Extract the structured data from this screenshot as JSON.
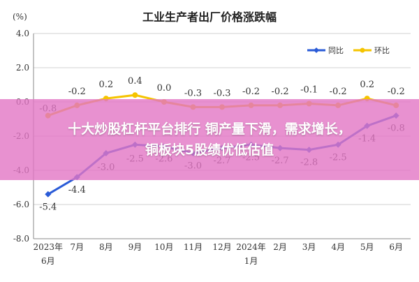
{
  "chart_data": {
    "type": "line",
    "title": "工业生产者出厂价格涨跌幅",
    "y_unit": "(%)",
    "ylim": [
      -8.0,
      4.0
    ],
    "yticks": [
      "4.0",
      "2.0",
      "0.0",
      "-2.0",
      "-4.0",
      "-6.0",
      "-8.0"
    ],
    "grid": true,
    "legend_position": "top-right",
    "categories": [
      "2023年 6月",
      "7月",
      "8月",
      "9月",
      "10月",
      "11月",
      "12月",
      "2024年 1月",
      "2月",
      "3月",
      "4月",
      "5月",
      "6月"
    ],
    "category_labels": [
      [
        "2023年",
        "6月"
      ],
      [
        "7月"
      ],
      [
        "8月"
      ],
      [
        "9月"
      ],
      [
        "10月"
      ],
      [
        "11月"
      ],
      [
        "12月"
      ],
      [
        "2024年",
        "1月"
      ],
      [
        "2月"
      ],
      [
        "3月"
      ],
      [
        "4月"
      ],
      [
        "5月"
      ],
      [
        "6月"
      ]
    ],
    "series": [
      {
        "name": "同比",
        "color": "#2a5bd7",
        "values": [
          -5.4,
          -4.4,
          -3.0,
          -2.5,
          -2.6,
          -3.0,
          -2.7,
          -2.5,
          -2.7,
          -2.8,
          -2.5,
          -1.4,
          -0.8
        ],
        "labels": [
          "-5.4",
          "-4.4",
          "-3.0",
          "-2.5",
          "-2.6",
          "-3.0",
          "-2.7",
          "-2.5",
          "-2.7",
          "-2.8",
          "-2.5",
          "-1.4",
          "-0.8"
        ]
      },
      {
        "name": "环比",
        "color": "#f5c400",
        "values": [
          -0.8,
          -0.2,
          0.2,
          0.4,
          0.0,
          -0.3,
          -0.3,
          -0.2,
          -0.2,
          -0.1,
          -0.2,
          0.2,
          -0.2
        ],
        "labels": [
          "-0.8",
          "-0.2",
          "0.2",
          "0.4",
          "0.0",
          "-0.3",
          "-0.3",
          "-0.2",
          "-0.2",
          "-0.1",
          "-0.2",
          "0.2",
          "-0.2"
        ]
      }
    ]
  },
  "overlay": {
    "line1": "十大炒股杠杆平台排行 铜产量下滑，需求增长，",
    "line2": "铜板块5股绩优低估值",
    "color": "#e276c4"
  }
}
